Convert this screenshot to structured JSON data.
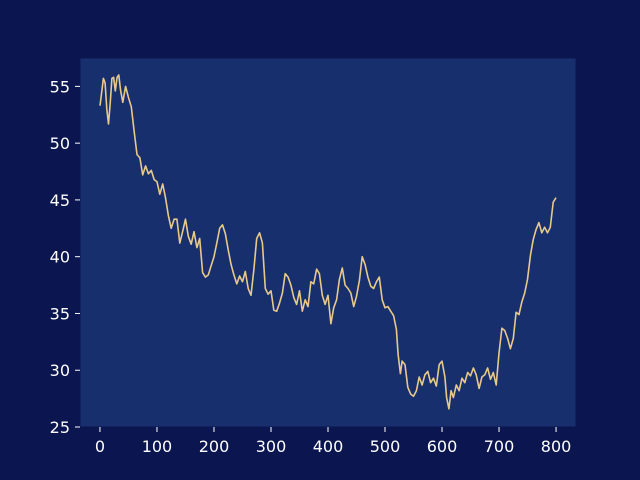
{
  "colors": {
    "figure_background": "#0b1550",
    "plot_background": "#17306d",
    "axis": "#0b1550",
    "line": "#e8c98a",
    "text": "#ffffff"
  },
  "chart_data": {
    "type": "line",
    "title": "",
    "xlabel": "",
    "ylabel": "",
    "grid": false,
    "xlim": [
      -35,
      835
    ],
    "ylim": [
      25,
      57.5
    ],
    "xticks": [
      0,
      100,
      200,
      300,
      400,
      500,
      600,
      700,
      800
    ],
    "yticks": [
      25,
      30,
      35,
      40,
      45,
      50,
      55
    ],
    "series": [
      {
        "points": [
          [
            0,
            53.3
          ],
          [
            3,
            54.5
          ],
          [
            6,
            55.7
          ],
          [
            9,
            55.3
          ],
          [
            12,
            53.0
          ],
          [
            15,
            51.7
          ],
          [
            18,
            53.5
          ],
          [
            21,
            55.7
          ],
          [
            24,
            55.8
          ],
          [
            27,
            54.6
          ],
          [
            30,
            55.8
          ],
          [
            33,
            56.0
          ],
          [
            36,
            54.7
          ],
          [
            40,
            53.6
          ],
          [
            45,
            55.0
          ],
          [
            50,
            54.0
          ],
          [
            55,
            53.2
          ],
          [
            60,
            51.0
          ],
          [
            65,
            49.0
          ],
          [
            70,
            48.7
          ],
          [
            75,
            47.2
          ],
          [
            80,
            48.0
          ],
          [
            85,
            47.3
          ],
          [
            90,
            47.6
          ],
          [
            95,
            46.8
          ],
          [
            100,
            46.6
          ],
          [
            105,
            45.5
          ],
          [
            110,
            46.4
          ],
          [
            115,
            45.2
          ],
          [
            120,
            43.6
          ],
          [
            125,
            42.5
          ],
          [
            130,
            43.3
          ],
          [
            135,
            43.3
          ],
          [
            140,
            41.2
          ],
          [
            145,
            42.2
          ],
          [
            150,
            43.3
          ],
          [
            155,
            41.8
          ],
          [
            160,
            41.1
          ],
          [
            165,
            42.2
          ],
          [
            170,
            40.8
          ],
          [
            175,
            41.6
          ],
          [
            180,
            38.6
          ],
          [
            185,
            38.2
          ],
          [
            190,
            38.4
          ],
          [
            195,
            39.2
          ],
          [
            200,
            40.0
          ],
          [
            205,
            41.2
          ],
          [
            210,
            42.5
          ],
          [
            215,
            42.8
          ],
          [
            220,
            42.0
          ],
          [
            225,
            40.6
          ],
          [
            230,
            39.3
          ],
          [
            235,
            38.4
          ],
          [
            240,
            37.6
          ],
          [
            245,
            38.3
          ],
          [
            250,
            37.8
          ],
          [
            255,
            38.7
          ],
          [
            260,
            37.2
          ],
          [
            265,
            36.6
          ],
          [
            270,
            38.9
          ],
          [
            275,
            41.6
          ],
          [
            280,
            42.1
          ],
          [
            285,
            41.2
          ],
          [
            290,
            37.2
          ],
          [
            295,
            36.7
          ],
          [
            300,
            37.0
          ],
          [
            305,
            35.3
          ],
          [
            310,
            35.2
          ],
          [
            315,
            35.9
          ],
          [
            320,
            36.8
          ],
          [
            325,
            38.5
          ],
          [
            330,
            38.2
          ],
          [
            335,
            37.5
          ],
          [
            340,
            36.4
          ],
          [
            345,
            35.8
          ],
          [
            350,
            37.0
          ],
          [
            355,
            35.2
          ],
          [
            360,
            36.2
          ],
          [
            365,
            35.6
          ],
          [
            370,
            37.8
          ],
          [
            375,
            37.6
          ],
          [
            380,
            38.9
          ],
          [
            385,
            38.5
          ],
          [
            390,
            36.6
          ],
          [
            395,
            35.8
          ],
          [
            400,
            36.6
          ],
          [
            405,
            34.1
          ],
          [
            410,
            35.5
          ],
          [
            415,
            36.2
          ],
          [
            420,
            38.0
          ],
          [
            425,
            39.0
          ],
          [
            430,
            37.5
          ],
          [
            435,
            37.2
          ],
          [
            440,
            36.8
          ],
          [
            445,
            35.6
          ],
          [
            450,
            36.5
          ],
          [
            455,
            37.9
          ],
          [
            460,
            40.0
          ],
          [
            465,
            39.3
          ],
          [
            470,
            38.2
          ],
          [
            475,
            37.4
          ],
          [
            480,
            37.2
          ],
          [
            485,
            37.8
          ],
          [
            490,
            38.2
          ],
          [
            495,
            36.2
          ],
          [
            500,
            35.5
          ],
          [
            505,
            35.6
          ],
          [
            510,
            35.2
          ],
          [
            515,
            34.8
          ],
          [
            520,
            33.6
          ],
          [
            523,
            31.4
          ],
          [
            527,
            29.7
          ],
          [
            530,
            30.8
          ],
          [
            535,
            30.5
          ],
          [
            540,
            28.5
          ],
          [
            545,
            27.9
          ],
          [
            550,
            27.7
          ],
          [
            555,
            28.2
          ],
          [
            560,
            29.4
          ],
          [
            565,
            28.7
          ],
          [
            570,
            29.6
          ],
          [
            575,
            29.9
          ],
          [
            580,
            28.9
          ],
          [
            585,
            29.3
          ],
          [
            590,
            28.6
          ],
          [
            595,
            30.5
          ],
          [
            600,
            30.8
          ],
          [
            605,
            29.4
          ],
          [
            608,
            27.6
          ],
          [
            612,
            26.6
          ],
          [
            616,
            28.2
          ],
          [
            620,
            27.6
          ],
          [
            625,
            28.7
          ],
          [
            630,
            28.2
          ],
          [
            635,
            29.3
          ],
          [
            640,
            28.9
          ],
          [
            645,
            29.8
          ],
          [
            650,
            29.5
          ],
          [
            655,
            30.2
          ],
          [
            660,
            29.6
          ],
          [
            665,
            28.4
          ],
          [
            670,
            29.4
          ],
          [
            675,
            29.6
          ],
          [
            680,
            30.2
          ],
          [
            685,
            29.2
          ],
          [
            690,
            29.8
          ],
          [
            695,
            28.7
          ],
          [
            700,
            31.5
          ],
          [
            705,
            33.7
          ],
          [
            710,
            33.5
          ],
          [
            715,
            32.8
          ],
          [
            720,
            31.9
          ],
          [
            725,
            32.8
          ],
          [
            730,
            35.1
          ],
          [
            735,
            34.9
          ],
          [
            740,
            36.0
          ],
          [
            745,
            36.8
          ],
          [
            750,
            38.0
          ],
          [
            755,
            40.1
          ],
          [
            760,
            41.5
          ],
          [
            765,
            42.4
          ],
          [
            770,
            43.0
          ],
          [
            775,
            42.1
          ],
          [
            780,
            42.6
          ],
          [
            785,
            42.1
          ],
          [
            790,
            42.6
          ],
          [
            795,
            44.8
          ],
          [
            800,
            45.2
          ]
        ]
      }
    ]
  }
}
